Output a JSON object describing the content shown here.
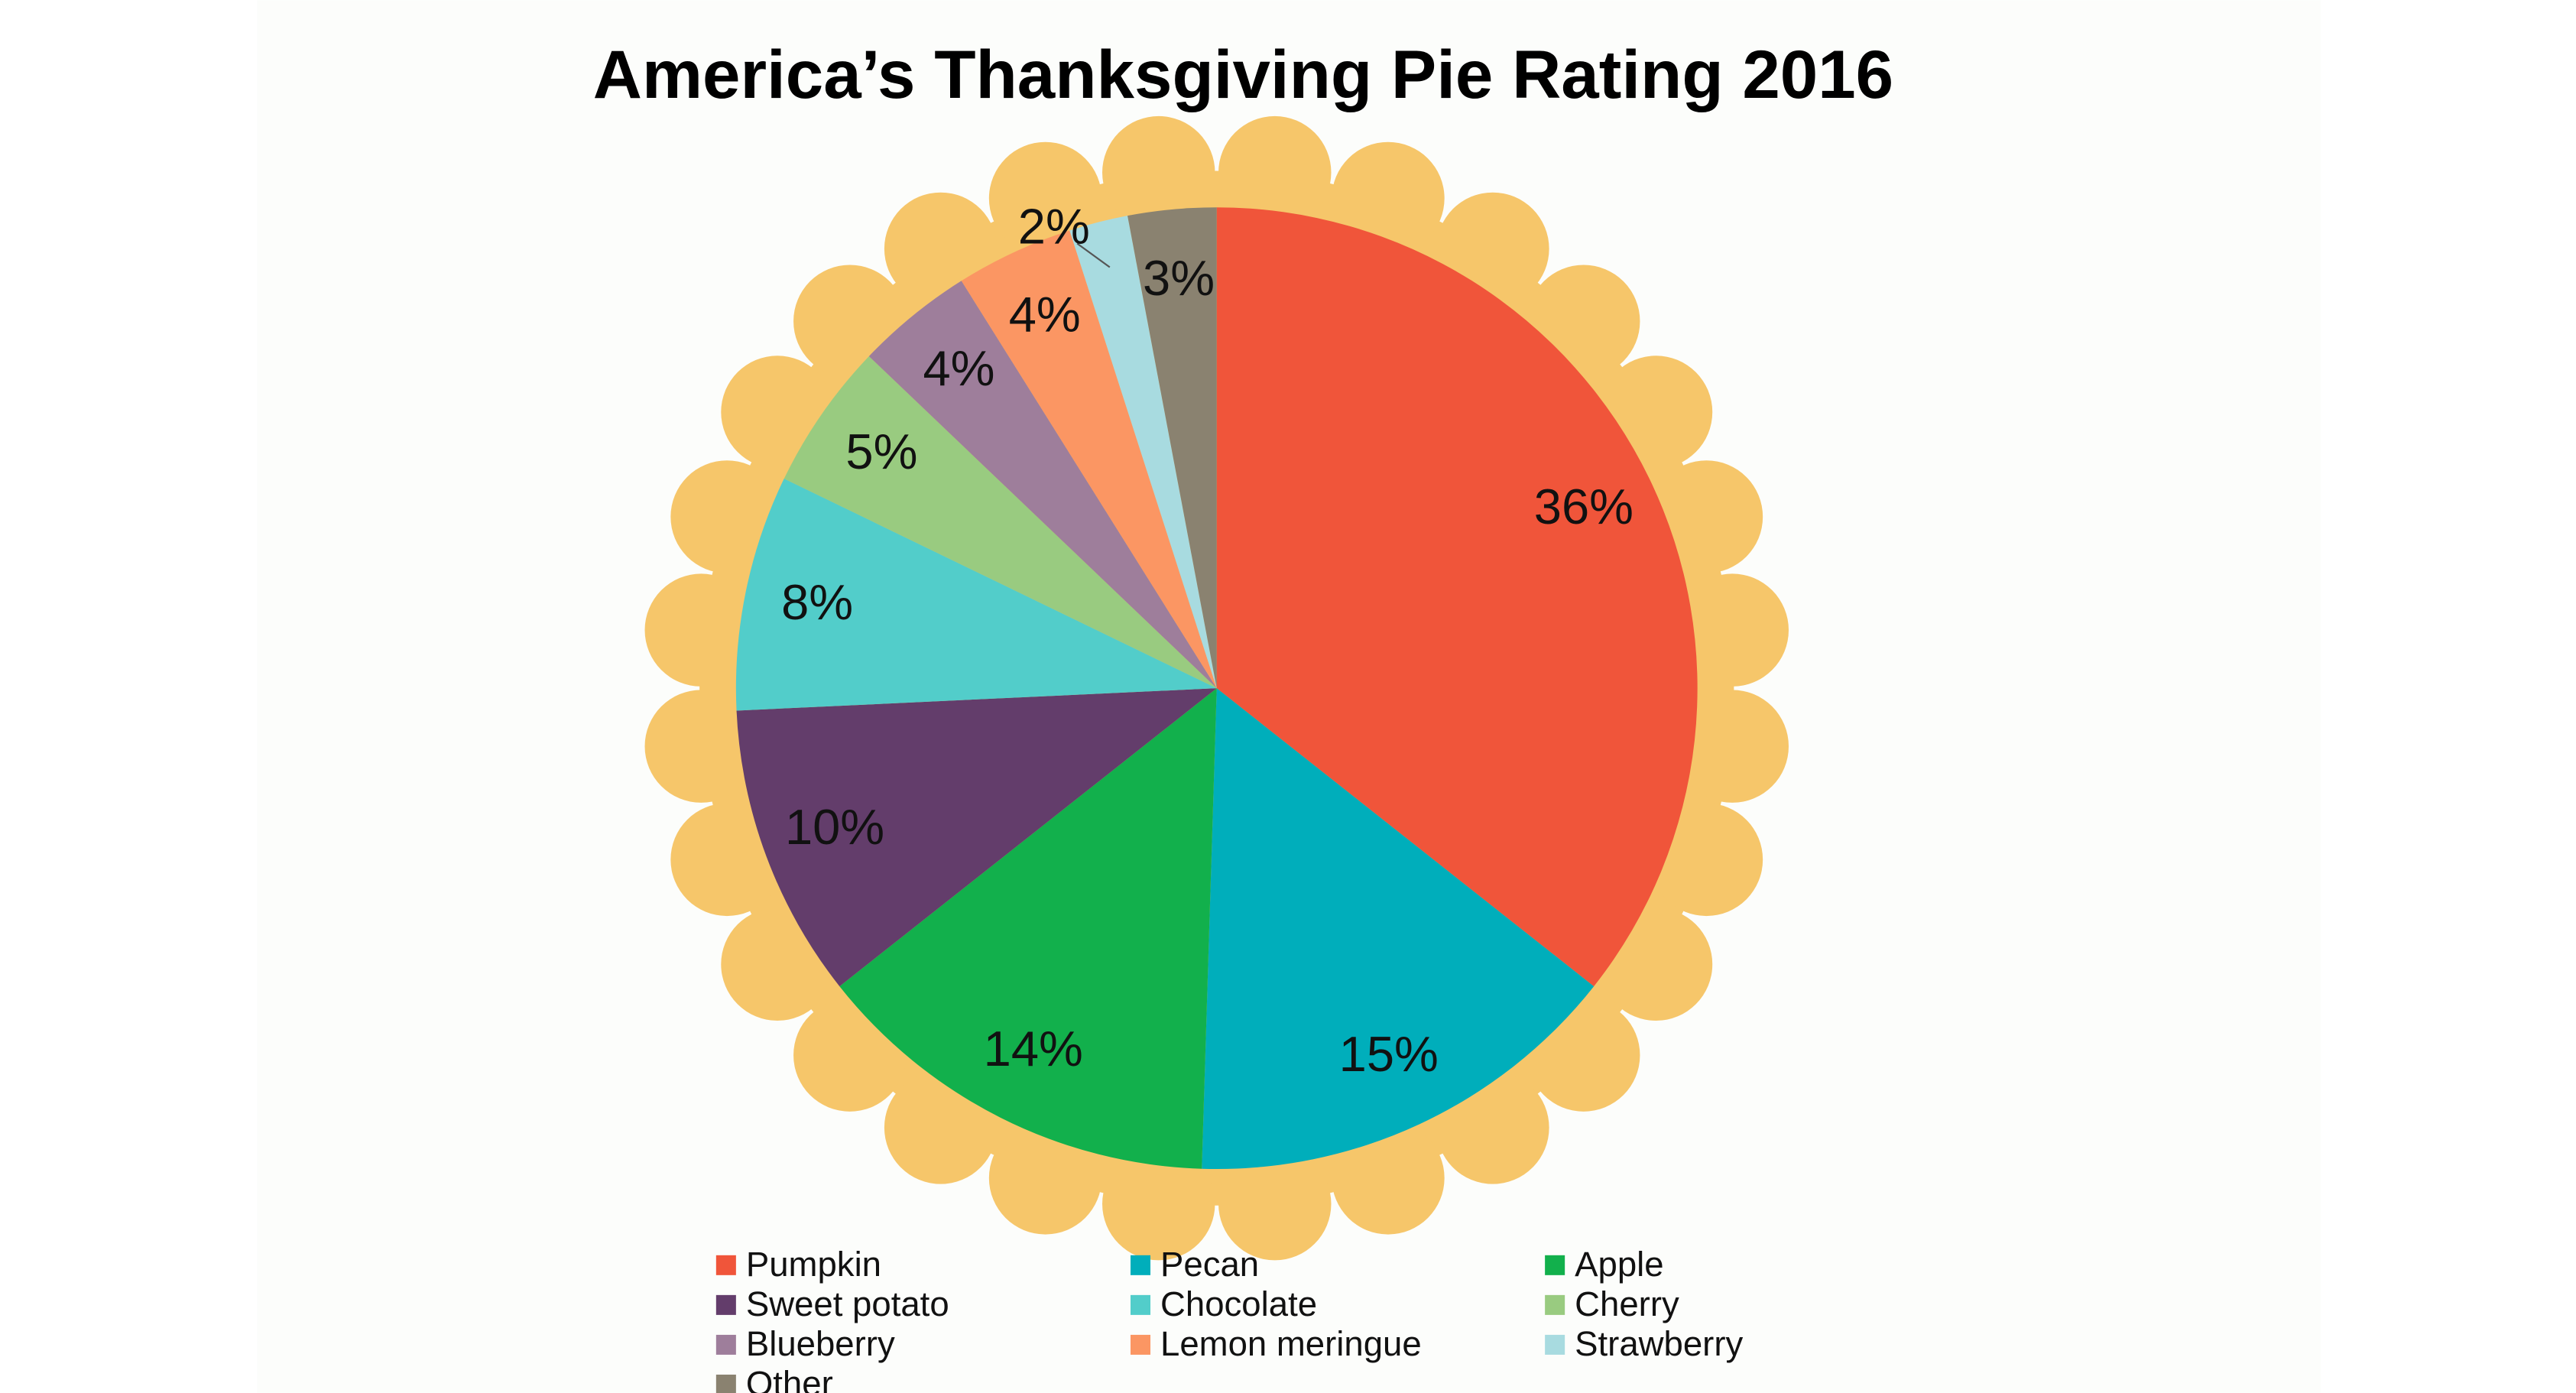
{
  "chart_data": {
    "type": "pie",
    "title": "America’s Thanksgiving Pie Rating 2016",
    "categories": [
      "Pumpkin",
      "Pecan",
      "Apple",
      "Sweet potato",
      "Chocolate",
      "Cherry",
      "Blueberry",
      "Lemon meringue",
      "Strawberry",
      "Other"
    ],
    "values": [
      36,
      15,
      14,
      10,
      8,
      5,
      4,
      4,
      2,
      3
    ],
    "value_labels": [
      "36%",
      "15%",
      "14%",
      "10%",
      "8%",
      "5%",
      "4%",
      "4%",
      "2%",
      "3%"
    ],
    "colors": [
      "#f0553a",
      "#00aebb",
      "#12b04c",
      "#633d6b",
      "#52cdca",
      "#99cb80",
      "#9e7e9b",
      "#fb9663",
      "#a8dbe0",
      "#8a8270"
    ],
    "legend": "bottom"
  }
}
